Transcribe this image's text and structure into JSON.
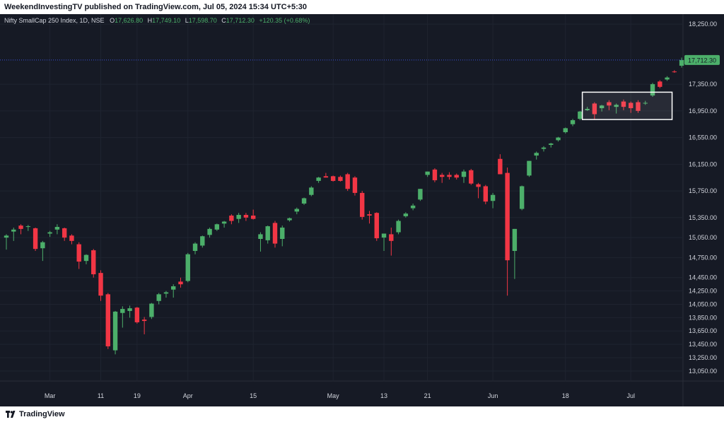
{
  "header": {
    "publisher_line": "WeekendInvestingTV published on TradingView.com, Jul 05, 2024 15:34 UTC+5:30"
  },
  "footer": {
    "brand": "TradingView",
    "logo_icon": "tradingview-logo-icon"
  },
  "legend": {
    "symbol": "Nifty SmallCap 250 Index, 1D, NSE",
    "o_label": "O",
    "o_value": "17,626.80",
    "h_label": "H",
    "h_value": "17,749.10",
    "l_label": "L",
    "l_value": "17,598.70",
    "c_label": "C",
    "c_value": "17,712.30",
    "change": "+120.35 (+0.68%)"
  },
  "colors": {
    "background": "#161a25",
    "grid": "#1f2430",
    "up": "#4caf6a",
    "down": "#f23645",
    "price_line": "#3a52d9",
    "axis_text": "#d1d4dc",
    "highlight_box": "#ffffff"
  },
  "chart_data": {
    "type": "candlestick",
    "symbol": "Nifty SmallCap 250 Index",
    "interval": "1D",
    "exchange": "NSE",
    "last_price": 17712.3,
    "last_price_label": "17,712.30",
    "y_range": [
      12900,
      18400
    ],
    "y_ticks": [
      {
        "value": 18250,
        "label": "18,250.00"
      },
      {
        "value": 17350,
        "label": "17,350.00"
      },
      {
        "value": 16950,
        "label": "16,950.00"
      },
      {
        "value": 16550,
        "label": "16,550.00"
      },
      {
        "value": 16150,
        "label": "16,150.00"
      },
      {
        "value": 15750,
        "label": "15,750.00"
      },
      {
        "value": 15350,
        "label": "15,350.00"
      },
      {
        "value": 15050,
        "label": "15,050.00"
      },
      {
        "value": 14750,
        "label": "14,750.00"
      },
      {
        "value": 14450,
        "label": "14,450.00"
      },
      {
        "value": 14250,
        "label": "14,250.00"
      },
      {
        "value": 14050,
        "label": "14,050.00"
      },
      {
        "value": 13850,
        "label": "13,850.00"
      },
      {
        "value": 13650,
        "label": "13,650.00"
      },
      {
        "value": 13450,
        "label": "13,450.00"
      },
      {
        "value": 13250,
        "label": "13,250.00"
      },
      {
        "value": 13050,
        "label": "13,050.00"
      }
    ],
    "x_ticks": [
      {
        "index": 6,
        "label": "Mar"
      },
      {
        "index": 13,
        "label": "11"
      },
      {
        "index": 18,
        "label": "19"
      },
      {
        "index": 25,
        "label": "Apr"
      },
      {
        "index": 34,
        "label": "15"
      },
      {
        "index": 45,
        "label": "May"
      },
      {
        "index": 52,
        "label": "13"
      },
      {
        "index": 58,
        "label": "21"
      },
      {
        "index": 67,
        "label": "Jun"
      },
      {
        "index": 77,
        "label": "18"
      },
      {
        "index": 86,
        "label": "Jul"
      }
    ],
    "candles": [
      {
        "o": 15050,
        "h": 15100,
        "l": 14870,
        "c": 15080
      },
      {
        "o": 15140,
        "h": 15200,
        "l": 15000,
        "c": 15170
      },
      {
        "o": 15230,
        "h": 15250,
        "l": 15100,
        "c": 15180
      },
      {
        "o": 15210,
        "h": 15240,
        "l": 15150,
        "c": 15220
      },
      {
        "o": 15190,
        "h": 15200,
        "l": 14850,
        "c": 14880
      },
      {
        "o": 14890,
        "h": 15000,
        "l": 14700,
        "c": 14980
      },
      {
        "o": 15110,
        "h": 15150,
        "l": 15060,
        "c": 15130
      },
      {
        "o": 15170,
        "h": 15250,
        "l": 15100,
        "c": 15210
      },
      {
        "o": 15190,
        "h": 15200,
        "l": 15000,
        "c": 15050
      },
      {
        "o": 15080,
        "h": 15100,
        "l": 14950,
        "c": 15000
      },
      {
        "o": 14950,
        "h": 14980,
        "l": 14580,
        "c": 14690
      },
      {
        "o": 14700,
        "h": 14800,
        "l": 14650,
        "c": 14790
      },
      {
        "o": 14860,
        "h": 14880,
        "l": 14450,
        "c": 14500
      },
      {
        "o": 14520,
        "h": 14560,
        "l": 14100,
        "c": 14180
      },
      {
        "o": 14200,
        "h": 14220,
        "l": 13380,
        "c": 13420
      },
      {
        "o": 13360,
        "h": 13950,
        "l": 13300,
        "c": 13940
      },
      {
        "o": 13920,
        "h": 14020,
        "l": 13700,
        "c": 13980
      },
      {
        "o": 13950,
        "h": 14030,
        "l": 13850,
        "c": 13990
      },
      {
        "o": 14000,
        "h": 14010,
        "l": 13760,
        "c": 13780
      },
      {
        "o": 13820,
        "h": 13860,
        "l": 13600,
        "c": 13800
      },
      {
        "o": 13860,
        "h": 14070,
        "l": 13830,
        "c": 14060
      },
      {
        "o": 14100,
        "h": 14220,
        "l": 14050,
        "c": 14200
      },
      {
        "o": 14210,
        "h": 14250,
        "l": 14150,
        "c": 14230
      },
      {
        "o": 14270,
        "h": 14350,
        "l": 14150,
        "c": 14320
      },
      {
        "o": 14390,
        "h": 14450,
        "l": 14300,
        "c": 14350
      },
      {
        "o": 14400,
        "h": 14820,
        "l": 14380,
        "c": 14800
      },
      {
        "o": 14850,
        "h": 14980,
        "l": 14800,
        "c": 14960
      },
      {
        "o": 14930,
        "h": 15080,
        "l": 14900,
        "c": 15070
      },
      {
        "o": 15090,
        "h": 15200,
        "l": 15050,
        "c": 15180
      },
      {
        "o": 15170,
        "h": 15260,
        "l": 15150,
        "c": 15250
      },
      {
        "o": 15260,
        "h": 15300,
        "l": 15200,
        "c": 15290
      },
      {
        "o": 15380,
        "h": 15400,
        "l": 15250,
        "c": 15300
      },
      {
        "o": 15330,
        "h": 15420,
        "l": 15270,
        "c": 15390
      },
      {
        "o": 15390,
        "h": 15420,
        "l": 15300,
        "c": 15350
      },
      {
        "o": 15380,
        "h": 15470,
        "l": 15320,
        "c": 15330
      },
      {
        "o": 15030,
        "h": 15130,
        "l": 14840,
        "c": 15100
      },
      {
        "o": 15010,
        "h": 15230,
        "l": 14960,
        "c": 15220
      },
      {
        "o": 15270,
        "h": 15300,
        "l": 14900,
        "c": 14960
      },
      {
        "o": 15030,
        "h": 15230,
        "l": 14920,
        "c": 15200
      },
      {
        "o": 15310,
        "h": 15350,
        "l": 15290,
        "c": 15340
      },
      {
        "o": 15440,
        "h": 15500,
        "l": 15400,
        "c": 15480
      },
      {
        "o": 15560,
        "h": 15650,
        "l": 15540,
        "c": 15640
      },
      {
        "o": 15690,
        "h": 15820,
        "l": 15670,
        "c": 15800
      },
      {
        "o": 15900,
        "h": 15960,
        "l": 15870,
        "c": 15950
      },
      {
        "o": 15970,
        "h": 16020,
        "l": 15950,
        "c": 15950
      },
      {
        "o": 15970,
        "h": 15980,
        "l": 15890,
        "c": 15900
      },
      {
        "o": 15960,
        "h": 15980,
        "l": 15890,
        "c": 15900
      },
      {
        "o": 16000,
        "h": 16020,
        "l": 15750,
        "c": 15780
      },
      {
        "o": 15950,
        "h": 15970,
        "l": 15680,
        "c": 15720
      },
      {
        "o": 15720,
        "h": 15750,
        "l": 15320,
        "c": 15360
      },
      {
        "o": 15400,
        "h": 15450,
        "l": 15260,
        "c": 15380
      },
      {
        "o": 15420,
        "h": 15430,
        "l": 15000,
        "c": 15040
      },
      {
        "o": 15050,
        "h": 15100,
        "l": 14850,
        "c": 15110
      },
      {
        "o": 15100,
        "h": 15200,
        "l": 14780,
        "c": 15000
      },
      {
        "o": 15130,
        "h": 15320,
        "l": 15100,
        "c": 15300
      },
      {
        "o": 15370,
        "h": 15430,
        "l": 15350,
        "c": 15410
      },
      {
        "o": 15490,
        "h": 15560,
        "l": 15460,
        "c": 15530
      },
      {
        "o": 15620,
        "h": 15780,
        "l": 15600,
        "c": 15780
      },
      {
        "o": 15990,
        "h": 16040,
        "l": 15960,
        "c": 16040
      },
      {
        "o": 16070,
        "h": 16090,
        "l": 15880,
        "c": 15910
      },
      {
        "o": 15990,
        "h": 16020,
        "l": 15870,
        "c": 15960
      },
      {
        "o": 15990,
        "h": 16030,
        "l": 15920,
        "c": 15960
      },
      {
        "o": 15990,
        "h": 16010,
        "l": 15920,
        "c": 15950
      },
      {
        "o": 15960,
        "h": 16070,
        "l": 15870,
        "c": 16040
      },
      {
        "o": 16060,
        "h": 16080,
        "l": 15840,
        "c": 15860
      },
      {
        "o": 15850,
        "h": 15870,
        "l": 15640,
        "c": 15810
      },
      {
        "o": 15820,
        "h": 15840,
        "l": 15550,
        "c": 15590
      },
      {
        "o": 15600,
        "h": 15720,
        "l": 15490,
        "c": 15690
      },
      {
        "o": 16230,
        "h": 16300,
        "l": 16000,
        "c": 16000
      },
      {
        "o": 16020,
        "h": 16100,
        "l": 14180,
        "c": 14710
      },
      {
        "o": 14850,
        "h": 15180,
        "l": 14430,
        "c": 15180
      },
      {
        "o": 15480,
        "h": 15830,
        "l": 15460,
        "c": 15820
      },
      {
        "o": 15980,
        "h": 16200,
        "l": 15960,
        "c": 16200
      },
      {
        "o": 16280,
        "h": 16340,
        "l": 16220,
        "c": 16320
      },
      {
        "o": 16380,
        "h": 16420,
        "l": 16340,
        "c": 16400
      },
      {
        "o": 16440,
        "h": 16470,
        "l": 16400,
        "c": 16460
      },
      {
        "o": 16510,
        "h": 16560,
        "l": 16490,
        "c": 16550
      },
      {
        "o": 16630,
        "h": 16700,
        "l": 16610,
        "c": 16690
      },
      {
        "o": 16750,
        "h": 16830,
        "l": 16720,
        "c": 16810
      },
      {
        "o": 16830,
        "h": 16950,
        "l": 16810,
        "c": 16940
      },
      {
        "o": 16960,
        "h": 17010,
        "l": 16950,
        "c": 16980
      },
      {
        "o": 17060,
        "h": 17080,
        "l": 16820,
        "c": 16900
      },
      {
        "o": 16990,
        "h": 17040,
        "l": 16940,
        "c": 17030
      },
      {
        "o": 17080,
        "h": 17110,
        "l": 16960,
        "c": 17030
      },
      {
        "o": 17010,
        "h": 17060,
        "l": 16910,
        "c": 17040
      },
      {
        "o": 17090,
        "h": 17120,
        "l": 16960,
        "c": 17010
      },
      {
        "o": 17070,
        "h": 17090,
        "l": 16920,
        "c": 16990
      },
      {
        "o": 17080,
        "h": 17110,
        "l": 16920,
        "c": 16950
      },
      {
        "o": 17060,
        "h": 17100,
        "l": 17040,
        "c": 17070
      },
      {
        "o": 17180,
        "h": 17370,
        "l": 17160,
        "c": 17350
      },
      {
        "o": 17390,
        "h": 17410,
        "l": 17290,
        "c": 17310
      },
      {
        "o": 17420,
        "h": 17470,
        "l": 17400,
        "c": 17450
      },
      {
        "o": 17540,
        "h": 17560,
        "l": 17520,
        "c": 17530
      },
      {
        "o": 17626.8,
        "h": 17749.1,
        "l": 17598.7,
        "c": 17712.3
      }
    ],
    "highlight_box": {
      "x_start_index": 80,
      "x_end_index": 91,
      "y_top": 17230,
      "y_bottom": 16820
    }
  }
}
